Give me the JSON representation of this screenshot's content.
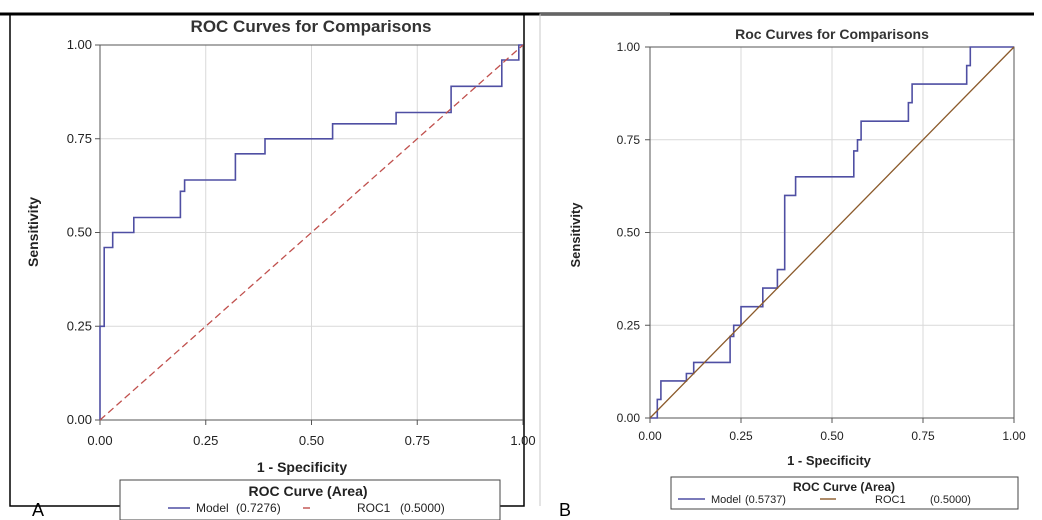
{
  "colors": {
    "model": "#4f4fa3",
    "roc1_a": "#c0504d",
    "roc1_b": "#8b5a2b",
    "grid": "#d9d9d9",
    "frame": "#000000"
  },
  "panels": [
    {
      "letter": "A"
    },
    {
      "letter": "B"
    }
  ],
  "chart_data": [
    {
      "type": "line",
      "title": "ROC Curves for Comparisons",
      "xlabel": "1 - Specificity",
      "ylabel": "Sensitivity",
      "xlim": [
        0,
        1
      ],
      "ylim": [
        0,
        1
      ],
      "xticks": [
        "0.00",
        "0.25",
        "0.50",
        "0.75",
        "1.00"
      ],
      "yticks": [
        "0.00",
        "0.25",
        "0.50",
        "0.75",
        "1.00"
      ],
      "grid": true,
      "legend": {
        "title": "ROC Curve (Area)",
        "placement": "bottom"
      },
      "series": [
        {
          "name": "Model",
          "label": "Model",
          "value_label": "(0.7276)",
          "style": "solid",
          "x": [
            0,
            0,
            0.01,
            0.01,
            0.03,
            0.03,
            0.08,
            0.08,
            0.19,
            0.19,
            0.2,
            0.2,
            0.32,
            0.32,
            0.39,
            0.39,
            0.55,
            0.55,
            0.7,
            0.7,
            0.83,
            0.83,
            0.95,
            0.95,
            0.99,
            0.99,
            1
          ],
          "y": [
            0,
            0.25,
            0.25,
            0.46,
            0.46,
            0.5,
            0.5,
            0.54,
            0.54,
            0.61,
            0.61,
            0.64,
            0.64,
            0.71,
            0.71,
            0.75,
            0.75,
            0.79,
            0.79,
            0.82,
            0.82,
            0.89,
            0.89,
            0.96,
            0.96,
            1,
            1
          ]
        },
        {
          "name": "ROC1",
          "label": "ROC1",
          "value_label": "(0.5000)",
          "style": "dashed",
          "x": [
            0,
            1
          ],
          "y": [
            0,
            1
          ]
        }
      ]
    },
    {
      "type": "line",
      "title": "Roc Curves for Comparisons",
      "xlabel": "1 - Specificity",
      "ylabel": "Sensitivity",
      "xlim": [
        0,
        1
      ],
      "ylim": [
        0,
        1
      ],
      "xticks": [
        "0.00",
        "0.25",
        "0.50",
        "0.75",
        "1.00"
      ],
      "yticks": [
        "0.00",
        "0.25",
        "0.50",
        "0.75",
        "1.00"
      ],
      "grid": true,
      "legend": {
        "title": "ROC Curve (Area)",
        "placement": "bottom"
      },
      "series": [
        {
          "name": "Model",
          "label": "Model",
          "value_label": "(0.5737)",
          "style": "solid",
          "x": [
            0,
            0.02,
            0.02,
            0.03,
            0.03,
            0.1,
            0.1,
            0.12,
            0.12,
            0.22,
            0.22,
            0.23,
            0.23,
            0.25,
            0.25,
            0.31,
            0.31,
            0.35,
            0.35,
            0.37,
            0.37,
            0.4,
            0.4,
            0.41,
            0.41,
            0.56,
            0.56,
            0.57,
            0.57,
            0.58,
            0.58,
            0.71,
            0.71,
            0.72,
            0.72,
            0.73,
            0.73,
            0.87,
            0.87,
            0.88,
            0.88,
            1
          ],
          "y": [
            0,
            0,
            0.05,
            0.05,
            0.1,
            0.1,
            0.12,
            0.12,
            0.15,
            0.15,
            0.22,
            0.22,
            0.25,
            0.25,
            0.3,
            0.3,
            0.35,
            0.35,
            0.4,
            0.4,
            0.6,
            0.6,
            0.65,
            0.65,
            0.65,
            0.65,
            0.72,
            0.72,
            0.75,
            0.75,
            0.8,
            0.8,
            0.85,
            0.85,
            0.9,
            0.9,
            0.9,
            0.9,
            0.95,
            0.95,
            1,
            1
          ]
        },
        {
          "name": "ROC1",
          "label": "ROC1",
          "value_label": "(0.5000)",
          "style": "solid",
          "x": [
            0,
            1
          ],
          "y": [
            0,
            1
          ]
        }
      ]
    }
  ]
}
